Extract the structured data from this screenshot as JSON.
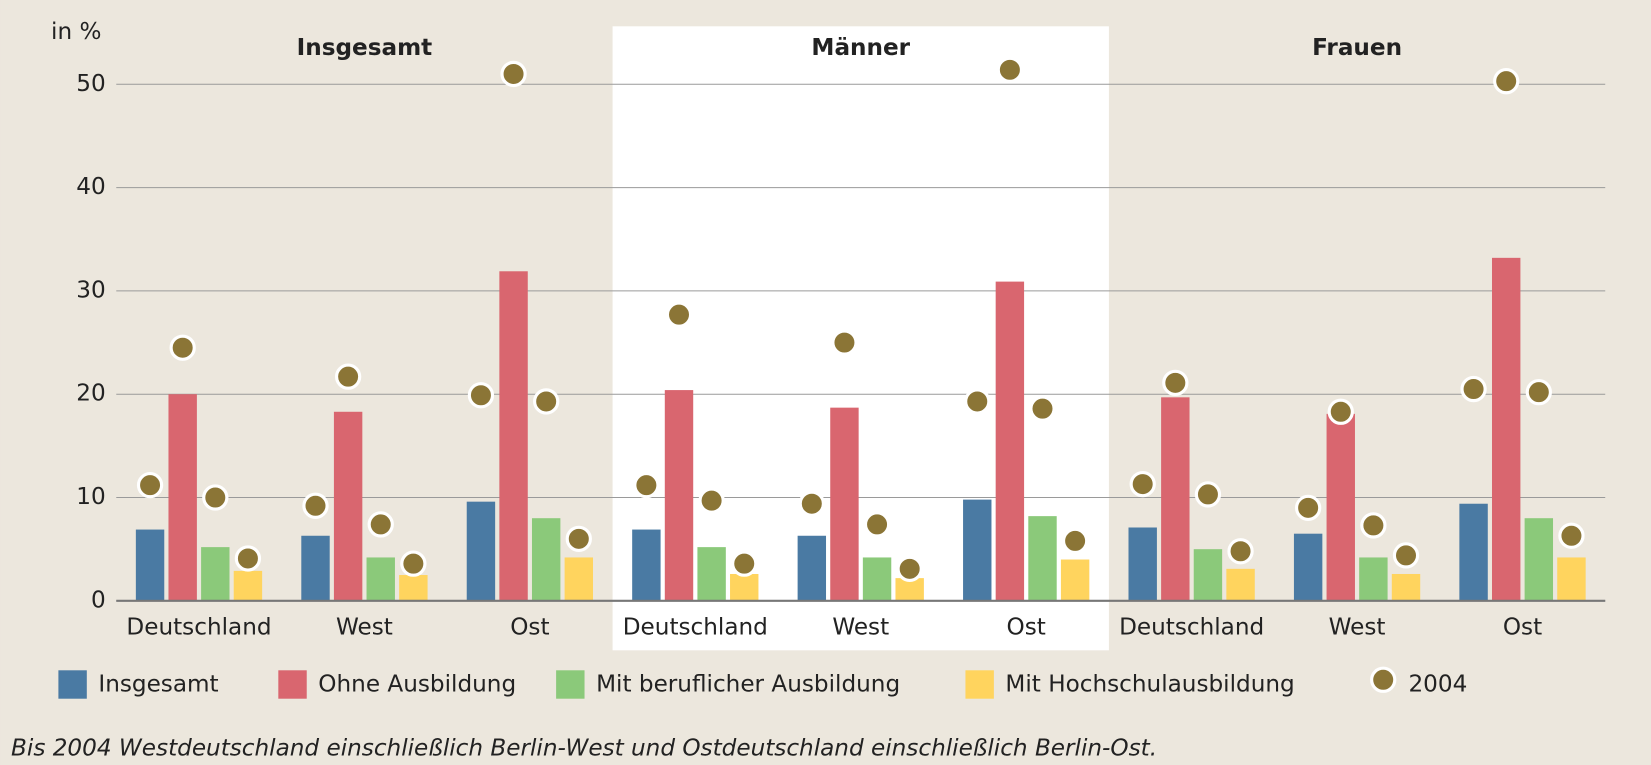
{
  "chart_data": {
    "type": "bar",
    "ylabel": "in %",
    "panels": [
      "Insgesamt",
      "Männer",
      "Frauen"
    ],
    "highlight_panel": 1,
    "categories": [
      "Deutschland",
      "West",
      "Ost",
      "Deutschland",
      "West",
      "Ost",
      "Deutschland",
      "West",
      "Ost"
    ],
    "series": [
      {
        "name": "Insgesamt",
        "color": "#4a7aa3",
        "values": [
          6.9,
          6.3,
          9.6,
          6.9,
          6.3,
          9.8,
          7.1,
          6.5,
          9.4
        ],
        "values_2004": [
          11.2,
          9.2,
          19.9,
          11.2,
          9.4,
          19.3,
          11.3,
          9.0,
          20.5
        ]
      },
      {
        "name": "Ohne Ausbildung",
        "color": "#d9666f",
        "values": [
          20.0,
          18.3,
          31.9,
          20.4,
          18.7,
          30.9,
          19.7,
          18.1,
          33.2
        ],
        "values_2004": [
          24.5,
          21.7,
          51.0,
          27.7,
          25.0,
          51.4,
          21.1,
          18.3,
          50.3
        ]
      },
      {
        "name": "Mit beruflicher Ausbildung",
        "color": "#8bc97a",
        "values": [
          5.2,
          4.2,
          8.0,
          5.2,
          4.2,
          8.2,
          5.0,
          4.2,
          8.0
        ],
        "values_2004": [
          10.0,
          7.4,
          19.3,
          9.7,
          7.4,
          18.6,
          10.3,
          7.3,
          20.2
        ]
      },
      {
        "name": "Mit Hochschulausbildung",
        "color": "#ffd45e",
        "values": [
          2.9,
          2.5,
          4.2,
          2.6,
          2.2,
          4.0,
          3.1,
          2.6,
          4.2
        ],
        "values_2004": [
          4.1,
          3.6,
          6.0,
          3.6,
          3.1,
          5.8,
          4.8,
          4.4,
          6.3
        ]
      }
    ],
    "comparison_name": "2004",
    "comparison_color": "#8b7536",
    "ylim": [
      0,
      55
    ],
    "yticks": [
      0,
      10,
      20,
      30,
      40,
      50
    ],
    "grid": true,
    "footnote": "Bis 2004 Westdeutschland einschließlich Berlin-West und Ostdeutschland einschließlich Berlin-Ost."
  }
}
